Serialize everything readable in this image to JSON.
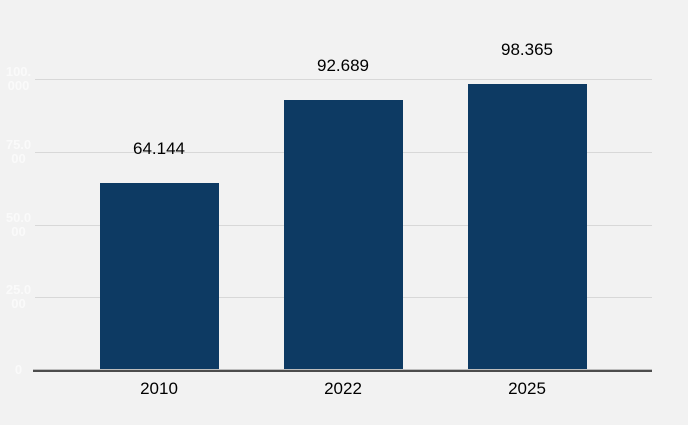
{
  "chart_data": {
    "type": "bar",
    "categories": [
      "2010",
      "2022",
      "2025"
    ],
    "values": [
      64144,
      92689,
      98365
    ],
    "value_labels": [
      "64.144",
      "92.689",
      "98.365"
    ],
    "ylim": [
      0,
      100000
    ],
    "grid": true,
    "legend": "none",
    "y_ticks": [
      {
        "label": "100.000",
        "value": 100000
      },
      {
        "label": "75.000",
        "value": 75000
      },
      {
        "label": "50.000",
        "value": 50000
      },
      {
        "label": "25.000",
        "value": 25000
      },
      {
        "label": "0",
        "value": 0
      }
    ],
    "colors": {
      "background": "#f2f2f2",
      "bar": "#0d3a63",
      "gridline": "#d8d8d8",
      "axis_line": "#4d4d4d",
      "value_label": "#000000",
      "category_label": "#000000",
      "y_tick_label": "#fafafa"
    }
  }
}
